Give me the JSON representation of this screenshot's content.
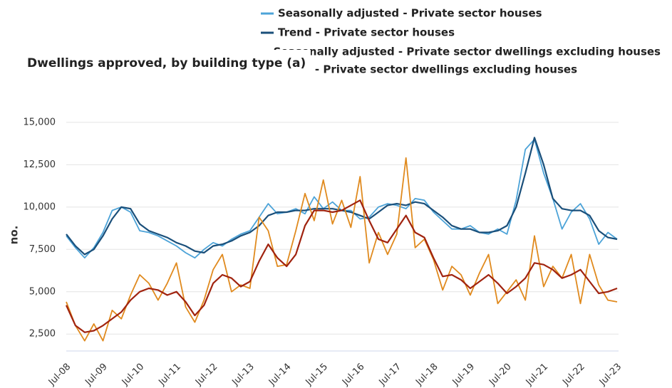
{
  "chart_data": {
    "type": "line",
    "title": "Dwellings approved, by building type (a)",
    "y_label": "no.",
    "categories": [
      "Jul-08",
      null,
      null,
      null,
      "Jul-09",
      null,
      null,
      null,
      "Jul-10",
      null,
      null,
      null,
      "Jul-11",
      null,
      null,
      null,
      "Jul-12",
      null,
      null,
      null,
      "Jul-13",
      null,
      null,
      null,
      "Jul-14",
      null,
      null,
      null,
      "Jul-15",
      null,
      null,
      null,
      "Jul-16",
      null,
      null,
      null,
      "Jul-17",
      null,
      null,
      null,
      "Jul-18",
      null,
      null,
      null,
      "Jul-19",
      null,
      null,
      null,
      "Jul-20",
      null,
      null,
      null,
      "Jul-21",
      null,
      null,
      null,
      "Jul-22",
      null,
      null,
      null,
      "Jul-23"
    ],
    "series": [
      {
        "name": "Seasonally adjusted - Private sector houses",
        "color": "#4ca3d8",
        "values": [
          8300,
          7600,
          7000,
          7600,
          8500,
          9800,
          10000,
          9700,
          8600,
          8500,
          8300,
          8000,
          7700,
          7300,
          7000,
          7500,
          7900,
          7700,
          8100,
          8400,
          8600,
          9400,
          10200,
          9600,
          9700,
          9900,
          9600,
          10600,
          9900,
          10300,
          9800,
          9800,
          9300,
          9400,
          10000,
          10200,
          10100,
          9900,
          10500,
          10400,
          9700,
          9200,
          8700,
          8700,
          8900,
          8500,
          8400,
          8700,
          8400,
          10400,
          13400,
          14000,
          12000,
          10500,
          8700,
          9700,
          10200,
          9300,
          7800,
          8500,
          8100
        ]
      },
      {
        "name": "Trend - Private sector houses",
        "color": "#1a4f7a",
        "values": [
          8400,
          7700,
          7200,
          7500,
          8300,
          9300,
          10000,
          9900,
          9000,
          8600,
          8400,
          8200,
          7900,
          7700,
          7400,
          7300,
          7700,
          7800,
          8000,
          8300,
          8500,
          8900,
          9500,
          9700,
          9700,
          9800,
          9800,
          9900,
          9900,
          9900,
          9800,
          9700,
          9500,
          9300,
          9700,
          10100,
          10200,
          10100,
          10300,
          10200,
          9800,
          9400,
          8900,
          8700,
          8700,
          8500,
          8500,
          8600,
          8900,
          10000,
          12000,
          14100,
          12500,
          10500,
          9900,
          9800,
          9800,
          9500,
          8600,
          8200,
          8100
        ]
      },
      {
        "name": "Seasonally adjusted - Private sector dwellings excluding houses",
        "color": "#e08a1e",
        "values": [
          4400,
          3000,
          2100,
          3100,
          2100,
          3900,
          3400,
          4800,
          6000,
          5500,
          4500,
          5500,
          6700,
          4100,
          3200,
          4500,
          6300,
          7200,
          5000,
          5400,
          5200,
          9400,
          8600,
          6500,
          6600,
          8600,
          10800,
          9200,
          11600,
          9000,
          10400,
          8800,
          11800,
          6700,
          8500,
          7200,
          8400,
          12900,
          7600,
          8100,
          6900,
          5100,
          6500,
          6000,
          4800,
          6100,
          7200,
          4300,
          5000,
          5700,
          4500,
          8300,
          5300,
          6500,
          5800,
          7200,
          4300,
          7200,
          5400,
          4500,
          4400
        ]
      },
      {
        "name": "Trend - Private sector dwellings excluding houses",
        "color": "#a0230f",
        "values": [
          4200,
          3000,
          2600,
          2700,
          3000,
          3400,
          3800,
          4500,
          5000,
          5200,
          5100,
          4800,
          5000,
          4400,
          3600,
          4200,
          5500,
          6000,
          5800,
          5300,
          5600,
          6800,
          7800,
          7000,
          6500,
          7200,
          8900,
          9800,
          9800,
          9700,
          9800,
          10100,
          10400,
          9200,
          8100,
          7900,
          8700,
          9500,
          8500,
          8200,
          7000,
          5900,
          6000,
          5700,
          5200,
          5600,
          6000,
          5500,
          4900,
          5300,
          5800,
          6700,
          6600,
          6300,
          5800,
          6000,
          6300,
          5600,
          4900,
          5000,
          5200
        ]
      }
    ],
    "ylim": [
      1500,
      15500
    ],
    "yticks": [
      {
        "value": 2500,
        "label": "2,500"
      },
      {
        "value": 5000,
        "label": "5,000"
      },
      {
        "value": 7500,
        "label": "7,500"
      },
      {
        "value": 10000,
        "label": "10,000"
      },
      {
        "value": 12500,
        "label": "12,500"
      },
      {
        "value": 15000,
        "label": "15,000"
      }
    ],
    "grid": true
  }
}
